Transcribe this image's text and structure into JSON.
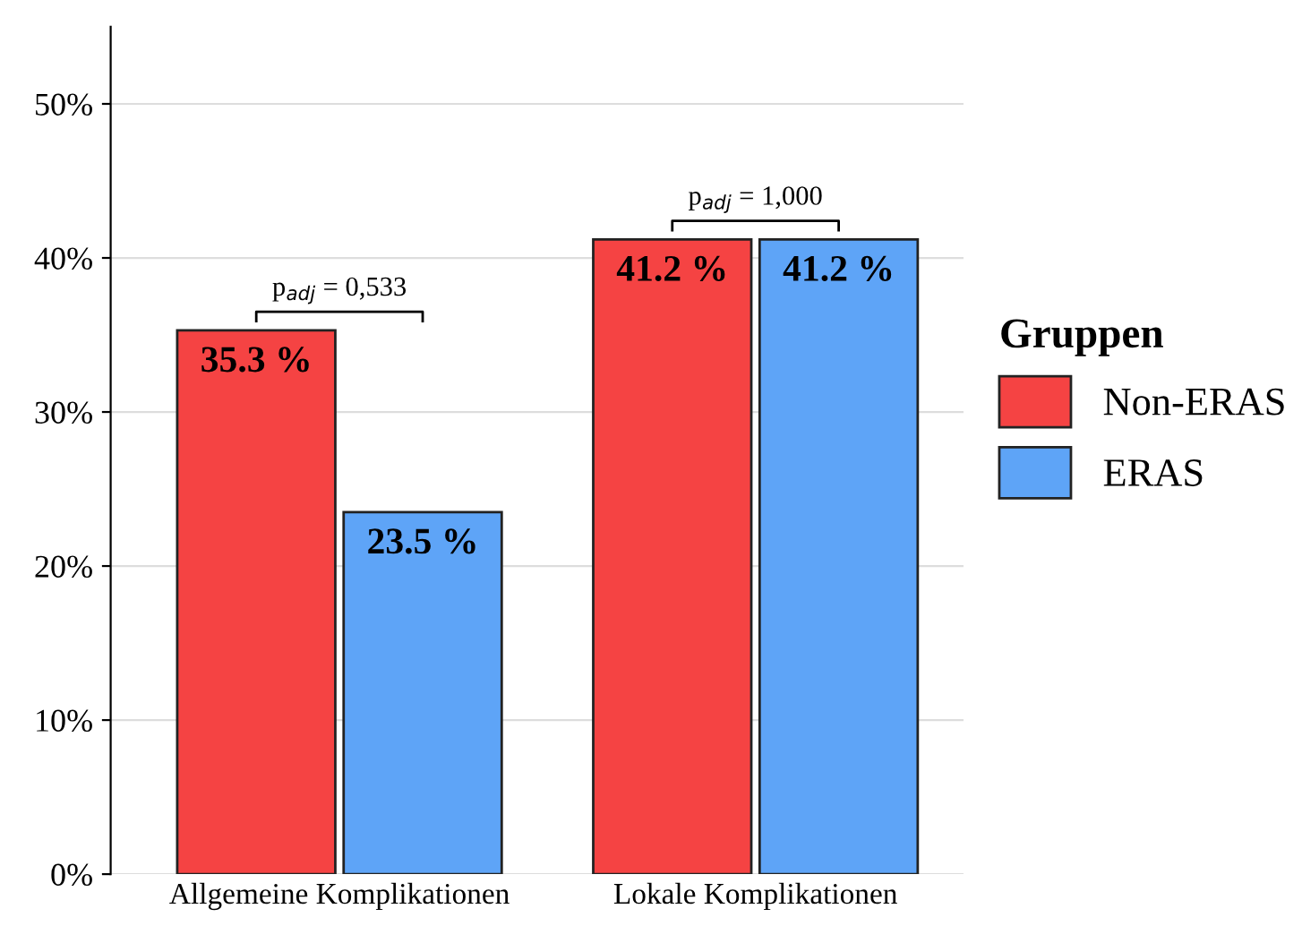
{
  "chart_data": {
    "type": "bar",
    "categories": [
      "Allgemeine Komplikationen",
      "Lokale Komplikationen"
    ],
    "series": [
      {
        "name": "Non-ERAS",
        "color": "#f54343",
        "values": [
          35.3,
          41.2
        ],
        "value_labels": [
          "35.3 %",
          "41.2 %"
        ]
      },
      {
        "name": "ERAS",
        "color": "#5ea4f7",
        "values": [
          23.5,
          41.2
        ],
        "value_labels": [
          "23.5 %",
          "41.2 %"
        ]
      }
    ],
    "legend_title": "Gruppen",
    "legend": "right",
    "grid": "y",
    "ylim": [
      0,
      55
    ],
    "yticks": [
      {
        "value": 0,
        "label": "0%"
      },
      {
        "value": 10,
        "label": "10%"
      },
      {
        "value": 20,
        "label": "20%"
      },
      {
        "value": 30,
        "label": "30%"
      },
      {
        "value": 40,
        "label": "40%"
      },
      {
        "value": 50,
        "label": "50%"
      }
    ],
    "annotations": [
      {
        "text": "p$_{adj}$ = 0,533",
        "x": "Allgemeine Komplikationen",
        "y": 35.3
      },
      {
        "text": "p$_{adj}$ = 1,000",
        "x": "Lokale Komplikationen",
        "y": 41.2
      }
    ]
  }
}
